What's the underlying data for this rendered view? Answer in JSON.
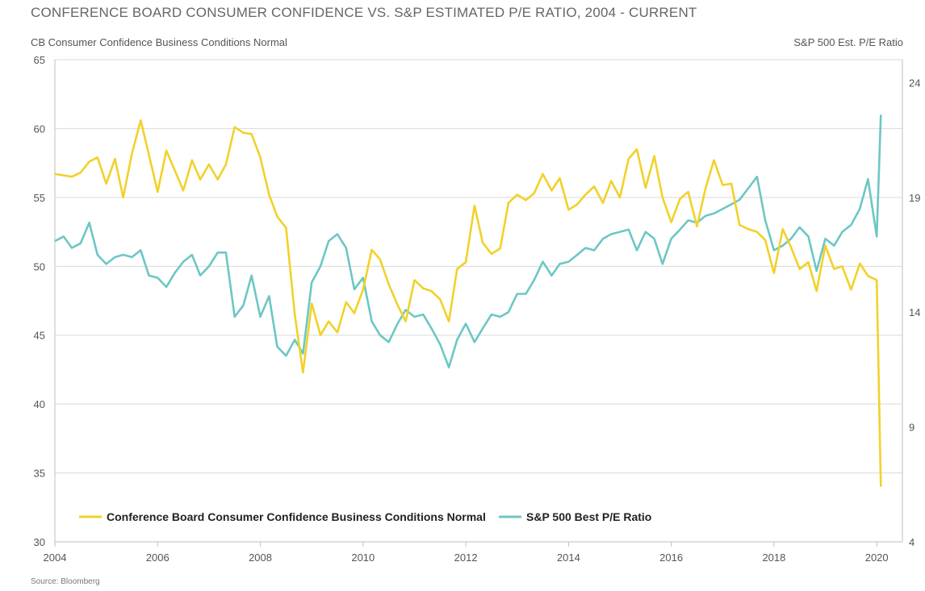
{
  "title": "CONFERENCE BOARD CONSUMER CONFIDENCE VS. S&P ESTIMATED P/E RATIO, 2004 - CURRENT",
  "left_axis_label": "CB Consumer Confidence Business Conditions Normal",
  "right_axis_label": "S&P 500 Est. P/E Ratio",
  "source": "Source: Bloomberg",
  "colors": {
    "series1": "#f2d12a",
    "series2": "#6cc7c4",
    "grid": "#d9d9d9",
    "axis": "#bfbfbf",
    "tick_text": "#555555"
  },
  "chart_data": {
    "type": "line",
    "title": "CONFERENCE BOARD CONSUMER CONFIDENCE VS. S&P ESTIMATED P/E RATIO, 2004 - CURRENT",
    "xlabel": "",
    "ylabel": "CB Consumer Confidence Business Conditions Normal",
    "y2label": "S&P 500 Est. P/E Ratio",
    "xlim": [
      2004,
      2020.5
    ],
    "ylim": [
      30,
      65
    ],
    "y2lim": [
      4,
      25
    ],
    "x_ticks": [
      2004,
      2006,
      2008,
      2010,
      2012,
      2014,
      2016,
      2018,
      2020
    ],
    "x_tick_labels": [
      "2004",
      "2006",
      "2008",
      "2010",
      "2012",
      "2014",
      "2016",
      "2018",
      "2020"
    ],
    "y_ticks": [
      30,
      35,
      40,
      45,
      50,
      55,
      60,
      65
    ],
    "y_tick_labels": [
      "30",
      "35",
      "40",
      "45",
      "50",
      "55",
      "60",
      "65"
    ],
    "y2_ticks": [
      4,
      9,
      14,
      19,
      24
    ],
    "y2_tick_labels": [
      "4",
      "9",
      "14",
      "19",
      "24"
    ],
    "grid": "horizontal",
    "legend": "bottom-left",
    "series": [
      {
        "name": "Conference Board Consumer Confidence Business Conditions Normal",
        "axis": "left",
        "x": [
          2004.0,
          2004.17,
          2004.33,
          2004.5,
          2004.67,
          2004.83,
          2005.0,
          2005.17,
          2005.33,
          2005.5,
          2005.67,
          2005.83,
          2006.0,
          2006.17,
          2006.33,
          2006.5,
          2006.67,
          2006.83,
          2007.0,
          2007.17,
          2007.33,
          2007.5,
          2007.67,
          2007.83,
          2008.0,
          2008.17,
          2008.33,
          2008.5,
          2008.67,
          2008.83,
          2009.0,
          2009.17,
          2009.33,
          2009.5,
          2009.67,
          2009.83,
          2010.0,
          2010.17,
          2010.33,
          2010.5,
          2010.67,
          2010.83,
          2011.0,
          2011.17,
          2011.33,
          2011.5,
          2011.67,
          2011.83,
          2012.0,
          2012.17,
          2012.33,
          2012.5,
          2012.67,
          2012.83,
          2013.0,
          2013.17,
          2013.33,
          2013.5,
          2013.67,
          2013.83,
          2014.0,
          2014.17,
          2014.33,
          2014.5,
          2014.67,
          2014.83,
          2015.0,
          2015.17,
          2015.33,
          2015.5,
          2015.67,
          2015.83,
          2016.0,
          2016.17,
          2016.33,
          2016.5,
          2016.67,
          2016.83,
          2017.0,
          2017.17,
          2017.33,
          2017.5,
          2017.67,
          2017.83,
          2018.0,
          2018.17,
          2018.33,
          2018.5,
          2018.67,
          2018.83,
          2019.0,
          2019.17,
          2019.33,
          2019.5,
          2019.67,
          2019.83,
          2020.0,
          2020.08
        ],
        "values": [
          56.7,
          56.6,
          56.5,
          56.8,
          57.6,
          57.9,
          56.0,
          57.8,
          55.0,
          58.2,
          60.6,
          58.1,
          55.4,
          58.4,
          57.0,
          55.5,
          57.7,
          56.3,
          57.4,
          56.3,
          57.4,
          60.1,
          59.7,
          59.6,
          57.9,
          55.2,
          53.6,
          52.8,
          46.5,
          42.3,
          47.3,
          45.0,
          46.0,
          45.2,
          47.4,
          46.6,
          48.3,
          51.2,
          50.5,
          48.7,
          47.2,
          46.0,
          49.0,
          48.4,
          48.2,
          47.6,
          46.0,
          49.8,
          50.3,
          54.4,
          51.7,
          50.9,
          51.3,
          54.6,
          55.2,
          54.8,
          55.3,
          56.7,
          55.5,
          56.4,
          54.1,
          54.5,
          55.2,
          55.8,
          54.6,
          56.2,
          55.0,
          57.8,
          58.5,
          55.7,
          58.0,
          55.0,
          53.2,
          54.9,
          55.4,
          52.9,
          55.7,
          57.7,
          55.9,
          56.0,
          53.0,
          52.7,
          52.5,
          51.9,
          49.5,
          52.7,
          51.4,
          49.8,
          50.3,
          48.2,
          51.5,
          49.8,
          50.0,
          48.3,
          50.2,
          49.3,
          49.0,
          34.0
        ]
      },
      {
        "name": "S&P 500 Best P/E Ratio",
        "axis": "right",
        "x": [
          2004.0,
          2004.17,
          2004.33,
          2004.5,
          2004.67,
          2004.83,
          2005.0,
          2005.17,
          2005.33,
          2005.5,
          2005.67,
          2005.83,
          2006.0,
          2006.17,
          2006.33,
          2006.5,
          2006.67,
          2006.83,
          2007.0,
          2007.17,
          2007.33,
          2007.5,
          2007.67,
          2007.83,
          2008.0,
          2008.17,
          2008.33,
          2008.5,
          2008.67,
          2008.83,
          2009.0,
          2009.17,
          2009.33,
          2009.5,
          2009.67,
          2009.83,
          2010.0,
          2010.17,
          2010.33,
          2010.5,
          2010.67,
          2010.83,
          2011.0,
          2011.17,
          2011.33,
          2011.5,
          2011.67,
          2011.83,
          2012.0,
          2012.17,
          2012.33,
          2012.5,
          2012.67,
          2012.83,
          2013.0,
          2013.17,
          2013.33,
          2013.5,
          2013.67,
          2013.83,
          2014.0,
          2014.17,
          2014.33,
          2014.5,
          2014.67,
          2014.83,
          2015.0,
          2015.17,
          2015.33,
          2015.5,
          2015.67,
          2015.83,
          2016.0,
          2016.17,
          2016.33,
          2016.5,
          2016.67,
          2016.83,
          2017.0,
          2017.17,
          2017.33,
          2017.5,
          2017.67,
          2017.83,
          2018.0,
          2018.17,
          2018.33,
          2018.5,
          2018.67,
          2018.83,
          2019.0,
          2019.17,
          2019.33,
          2019.5,
          2019.67,
          2019.83,
          2020.0,
          2020.08
        ],
        "values": [
          17.1,
          17.3,
          16.8,
          17.0,
          17.9,
          16.5,
          16.1,
          16.4,
          16.5,
          16.4,
          16.7,
          15.6,
          15.5,
          15.1,
          15.7,
          16.2,
          16.5,
          15.6,
          16.0,
          16.6,
          16.6,
          13.8,
          14.3,
          15.6,
          13.8,
          14.7,
          12.5,
          12.1,
          12.8,
          12.2,
          15.3,
          16.0,
          17.1,
          17.4,
          16.8,
          15.0,
          15.5,
          13.6,
          13.0,
          12.7,
          13.5,
          14.1,
          13.8,
          13.9,
          13.3,
          12.6,
          11.6,
          12.8,
          13.5,
          12.7,
          13.3,
          13.9,
          13.8,
          14.0,
          14.8,
          14.8,
          15.4,
          16.2,
          15.6,
          16.1,
          16.2,
          16.5,
          16.8,
          16.7,
          17.2,
          17.4,
          17.5,
          17.6,
          16.7,
          17.5,
          17.2,
          16.1,
          17.2,
          17.6,
          18.0,
          17.9,
          18.2,
          18.3,
          18.5,
          18.7,
          18.9,
          19.4,
          19.9,
          18.0,
          16.7,
          16.9,
          17.2,
          17.7,
          17.3,
          15.8,
          17.2,
          16.9,
          17.5,
          17.8,
          18.5,
          19.8,
          17.3,
          22.6
        ]
      }
    ]
  },
  "legend": [
    {
      "label": "Conference Board Consumer Confidence Business Conditions Normal",
      "color": "#f2d12a"
    },
    {
      "label": "S&P 500 Best P/E Ratio",
      "color": "#6cc7c4"
    }
  ]
}
